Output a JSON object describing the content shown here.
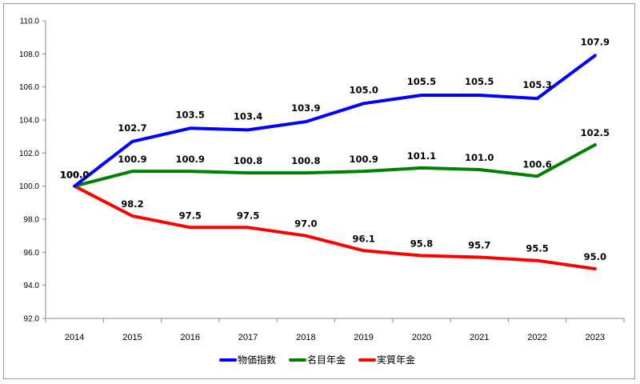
{
  "chart_data": {
    "type": "line",
    "x": [
      "2014",
      "2015",
      "2016",
      "2017",
      "2018",
      "2019",
      "2020",
      "2021",
      "2022",
      "2023"
    ],
    "ylim": [
      92.0,
      110.0
    ],
    "yticks": [
      "92.0",
      "94.0",
      "96.0",
      "98.0",
      "100.0",
      "102.0",
      "104.0",
      "106.0",
      "108.0",
      "110.0"
    ],
    "grid": false,
    "legend": "bottom",
    "series": [
      {
        "name": "物価指数",
        "color": "#0000ff",
        "values": [
          100.0,
          102.7,
          103.5,
          103.4,
          103.9,
          105.0,
          105.5,
          105.5,
          105.3,
          107.9
        ],
        "labels": [
          "100.0",
          "102.7",
          "103.5",
          "103.4",
          "103.9",
          "105.0",
          "105.5",
          "105.5",
          "105.3",
          "107.9"
        ]
      },
      {
        "name": "名目年金",
        "color": "#008000",
        "values": [
          100.0,
          100.9,
          100.9,
          100.8,
          100.8,
          100.9,
          101.1,
          101.0,
          100.6,
          102.5
        ],
        "labels": [
          "100.0",
          "100.9",
          "100.9",
          "100.8",
          "100.8",
          "100.9",
          "101.1",
          "101.0",
          "100.6",
          "102.5"
        ]
      },
      {
        "name": "実質年金",
        "color": "#ff0000",
        "values": [
          100.0,
          98.2,
          97.5,
          97.5,
          97.0,
          96.1,
          95.8,
          95.7,
          95.5,
          95.0
        ],
        "labels": [
          "100.0",
          "98.2",
          "97.5",
          "97.5",
          "97.0",
          "96.1",
          "95.8",
          "95.7",
          "95.5",
          "95.0"
        ]
      }
    ]
  }
}
